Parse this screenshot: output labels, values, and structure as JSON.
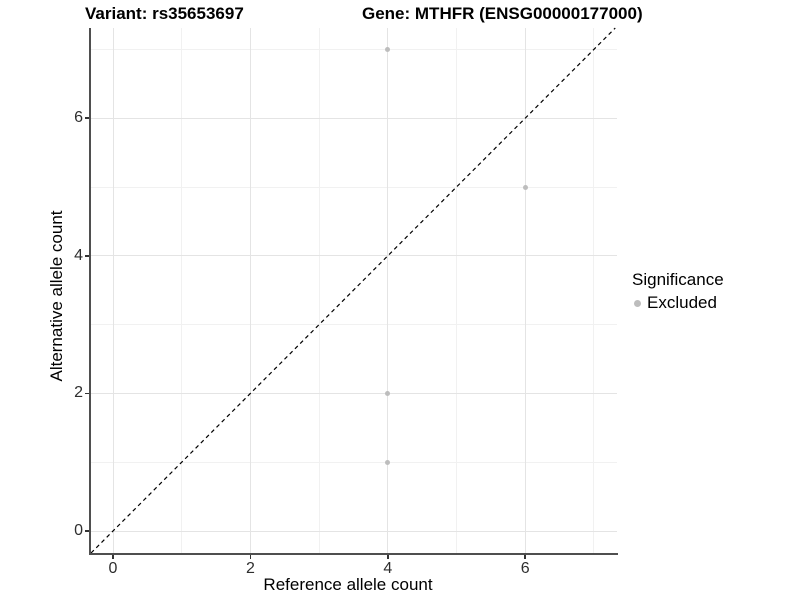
{
  "chart_data": {
    "type": "scatter",
    "titles": {
      "left": "Variant: rs35653697",
      "right": "Gene: MTHFR (ENSG00000177000)"
    },
    "xlabel": "Reference allele count",
    "ylabel": "Alternative allele count",
    "xlim": [
      -0.35,
      7.35
    ],
    "ylim": [
      -0.35,
      7.35
    ],
    "xticks": [
      0,
      2,
      4,
      6
    ],
    "yticks": [
      0,
      2,
      4,
      6
    ],
    "grid": {
      "major": [
        0,
        2,
        4,
        6
      ],
      "minor": [
        1,
        3,
        5,
        7
      ]
    },
    "series": [
      {
        "name": "Excluded",
        "color": "#bdbdbd",
        "points": [
          [
            4,
            7
          ],
          [
            6,
            5
          ],
          [
            4,
            2
          ],
          [
            4,
            1
          ]
        ]
      }
    ],
    "reference_line": {
      "kind": "identity",
      "equation": "y = x",
      "style": "dashed",
      "color": "#000000"
    },
    "legend": {
      "title": "Significance",
      "position": "right",
      "items": [
        {
          "label": "Excluded",
          "color": "#bdbdbd"
        }
      ]
    }
  },
  "colors": {
    "background": "#ffffff",
    "grid_major": "#e4e4e4",
    "grid_minor": "#f1f1f1",
    "axis_line": "#4f4f4f",
    "tick_label": "#2e2e2e",
    "title": "#000000",
    "point": "#bdbdbd"
  }
}
